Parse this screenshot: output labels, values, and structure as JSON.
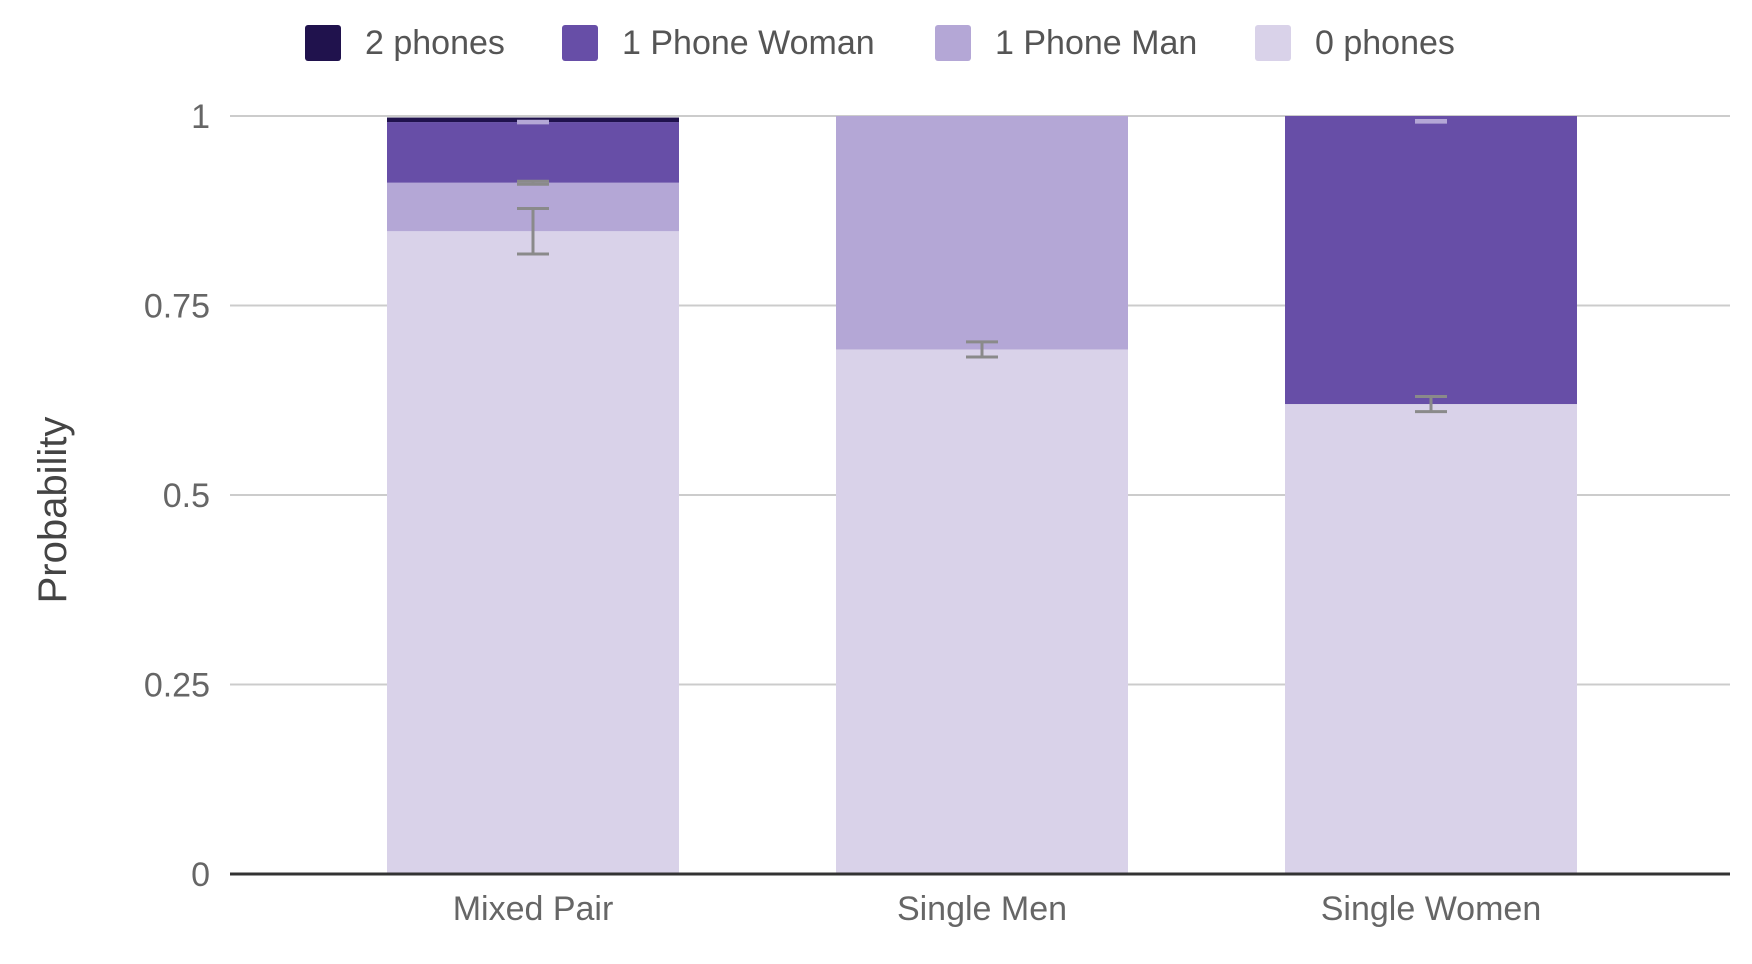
{
  "chart_data": {
    "type": "bar",
    "stacked": true,
    "title": "",
    "xlabel": "",
    "ylabel": "Probability",
    "ylim": [
      0,
      1
    ],
    "yticks": [
      0,
      0.25,
      0.5,
      0.75,
      1
    ],
    "ytick_labels": [
      "0",
      "0.25",
      "0.5",
      "0.75",
      "1"
    ],
    "grid": true,
    "legend_position": "top",
    "categories": [
      "Mixed Pair",
      "Single Men",
      "Single Women"
    ],
    "series": [
      {
        "name": "0 phones",
        "color": "#d9d2e9",
        "values": [
          0.848,
          0.692,
          0.62
        ],
        "error_low": [
          0.818,
          0.682,
          0.61
        ],
        "error_high": [
          0.878,
          0.702,
          0.63
        ]
      },
      {
        "name": "1 Phone Man",
        "color": "#b4a7d6",
        "values": [
          0.064,
          0.308,
          0.0
        ],
        "error_low": [
          0.91,
          null,
          null
        ],
        "error_high": [
          0.914,
          null,
          null
        ]
      },
      {
        "name": "1 Phone Woman",
        "color": "#674ea7",
        "values": [
          0.08,
          0.0,
          0.38
        ],
        "error_low": [
          0.991,
          0.994,
          0.992
        ],
        "error_high": [
          0.993,
          0.997,
          0.994
        ]
      },
      {
        "name": "2 phones",
        "color": "#20124d",
        "values": [
          0.006,
          0.0,
          0.0
        ],
        "error_low": [
          null,
          null,
          null
        ],
        "error_high": [
          null,
          null,
          null
        ]
      }
    ],
    "legend_order": [
      "2 phones",
      "1 Phone Woman",
      "1 Phone Man",
      "0 phones"
    ]
  }
}
